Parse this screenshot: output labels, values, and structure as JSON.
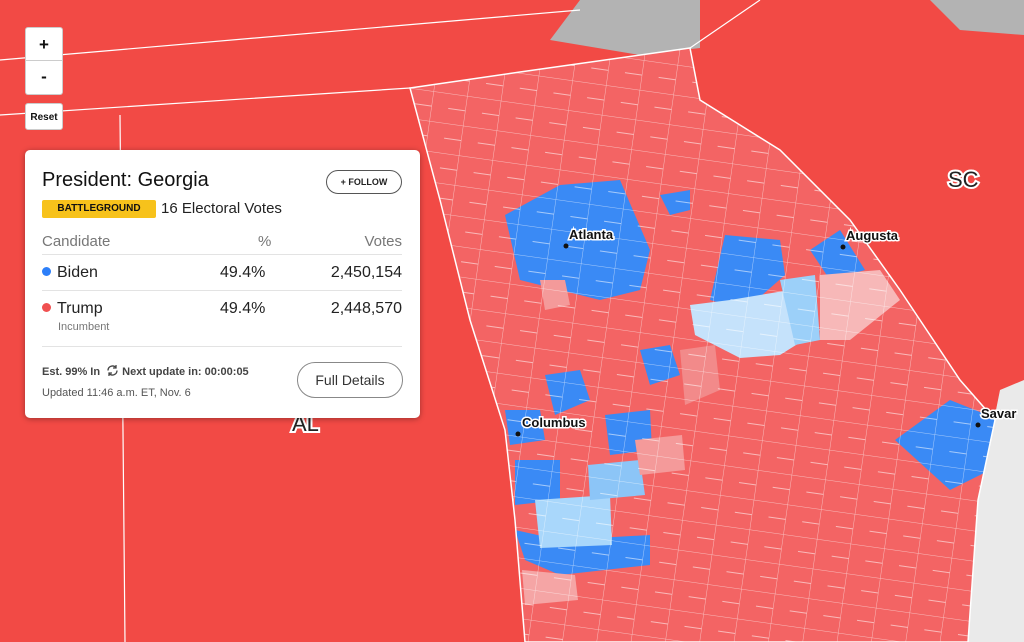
{
  "controls": {
    "zoom_in": "+",
    "zoom_out": "-",
    "reset": "Reset"
  },
  "map_labels": {
    "states": [
      "SC",
      "AL"
    ],
    "cities": [
      "Atlanta",
      "Augusta",
      "Columbus",
      "Savar"
    ]
  },
  "panel": {
    "title": "President: Georgia",
    "follow": "+ FOLLOW",
    "badge": "BATTLEGROUND",
    "electoral": "16 Electoral Votes",
    "table": {
      "headers": [
        "Candidate",
        "%",
        "Votes"
      ],
      "rows": [
        {
          "name": "Biden",
          "pct": "49.4%",
          "votes": "2,450,154"
        },
        {
          "name": "Trump",
          "pct": "49.4%",
          "votes": "2,448,570",
          "note": "Incumbent"
        }
      ]
    },
    "status": "Est. 99% In",
    "next_update": "Next update in: 00:00:05",
    "updated": "Updated 11:46 a.m. ET, Nov. 6",
    "details": "Full Details"
  }
}
